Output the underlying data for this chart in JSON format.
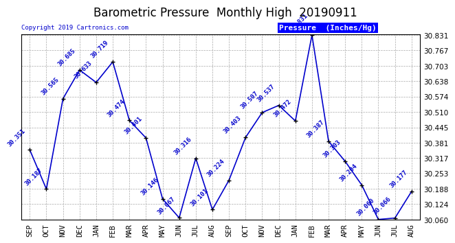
{
  "title": "Barometric Pressure  Monthly High  20190911",
  "copyright": "Copyright 2019 Cartronics.com",
  "legend_label": "Pressure  (Inches/Hg)",
  "categories": [
    "SEP",
    "OCT",
    "NOV",
    "DEC",
    "JAN",
    "FEB",
    "MAR",
    "APR",
    "MAY",
    "JUN",
    "JUL",
    "AUG",
    "SEP",
    "OCT",
    "NOV",
    "DEC",
    "JAN",
    "FEB",
    "MAR",
    "APR",
    "MAY",
    "JUN",
    "JUL",
    "AUG"
  ],
  "values": [
    30.351,
    30.187,
    30.565,
    30.685,
    30.633,
    30.719,
    30.474,
    30.401,
    30.146,
    30.067,
    30.316,
    30.101,
    30.224,
    30.403,
    30.507,
    30.537,
    30.472,
    30.831,
    30.387,
    30.303,
    30.204,
    30.06,
    30.066,
    30.177
  ],
  "ylim_min": 30.06,
  "ylim_max": 30.831,
  "yticks": [
    30.06,
    30.124,
    30.188,
    30.253,
    30.317,
    30.381,
    30.445,
    30.51,
    30.574,
    30.638,
    30.703,
    30.767,
    30.831
  ],
  "line_color": "#0000cc",
  "marker_color": "#000000",
  "background_color": "#ffffff",
  "grid_color": "#aaaaaa",
  "title_fontsize": 12,
  "tick_fontsize": 7.5,
  "annot_fontsize": 6.5,
  "legend_bg": "#0000ff",
  "legend_fg": "#ffffff",
  "legend_fontsize": 8
}
